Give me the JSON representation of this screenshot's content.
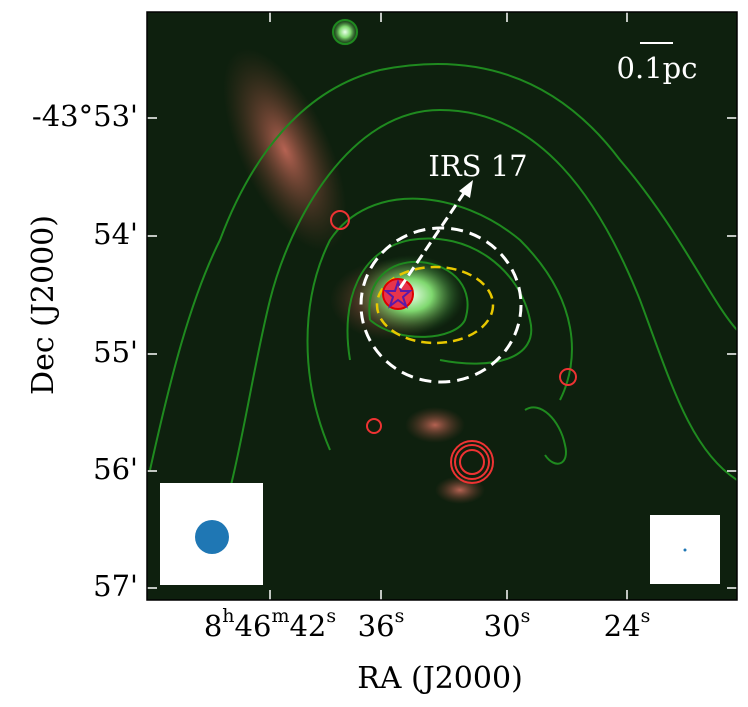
{
  "figure": {
    "x_axis": {
      "label": "RA (J2000)",
      "ticks": [
        "8h46m42s",
        "36s",
        "30s",
        "24s"
      ]
    },
    "y_axis": {
      "label": "Dec (J2000)",
      "ticks": [
        "-43°53'",
        "54'",
        "55'",
        "56'",
        "57'"
      ]
    },
    "annotations": {
      "source": "IRS 17",
      "scale_bar": "0.1pc"
    }
  }
}
